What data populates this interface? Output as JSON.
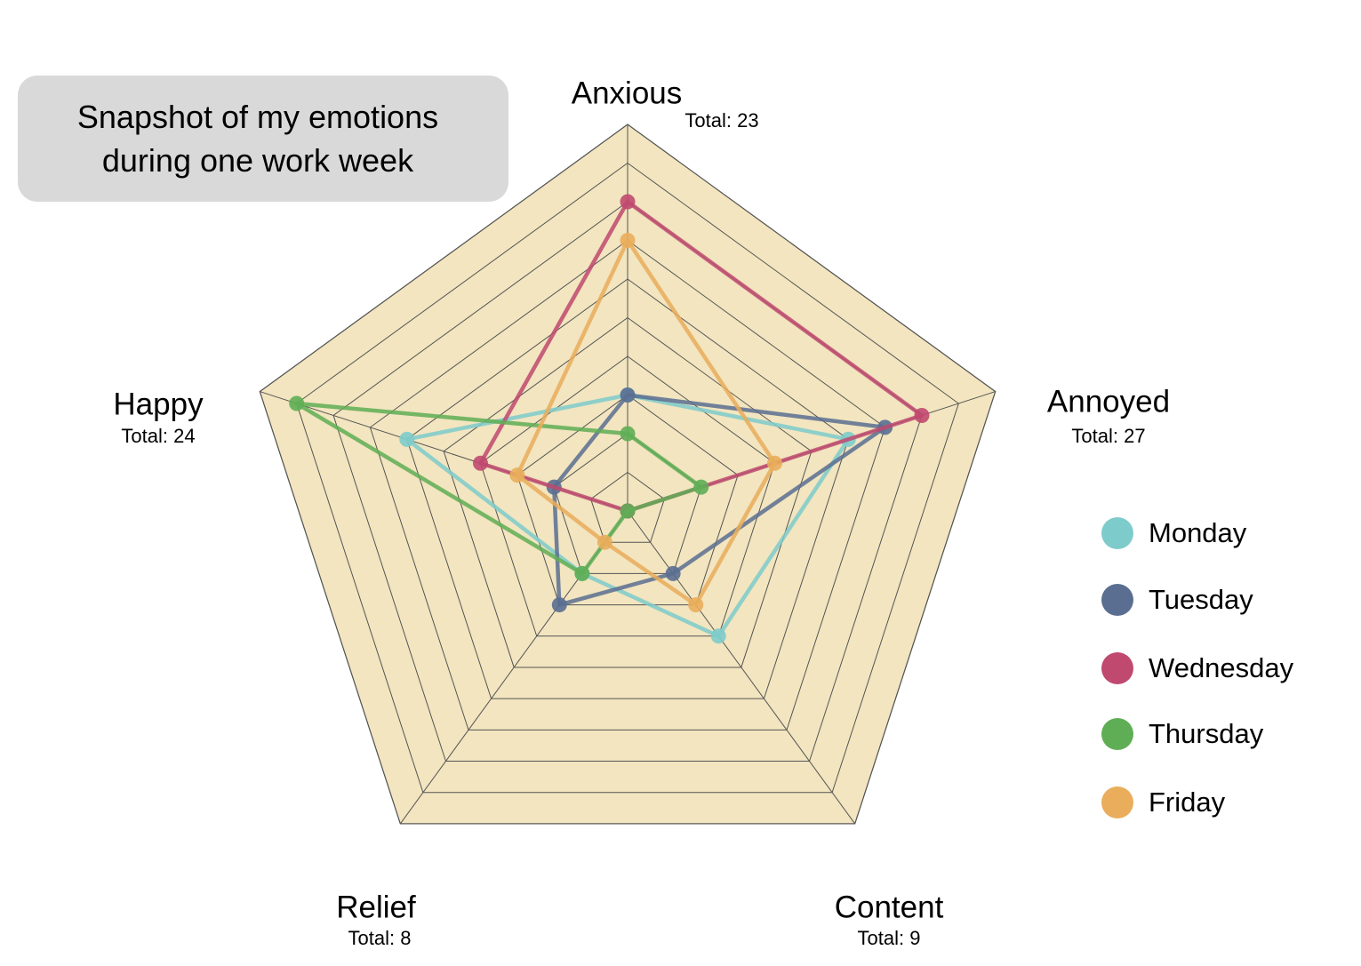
{
  "chart_data": {
    "type": "radar",
    "title": "Snapshot of my emotions during one work week",
    "categories": [
      "Anxious",
      "Annoyed",
      "Content",
      "Relief",
      "Happy"
    ],
    "category_totals": [
      "Total: 23",
      "Total: 27",
      "Total: 9",
      "Total: 8",
      "Total: 24"
    ],
    "rlim": [
      0,
      10
    ],
    "rticks": [
      1,
      2,
      3,
      4,
      5,
      6,
      7,
      8,
      9,
      10
    ],
    "grid": true,
    "legend": "right",
    "background": "#f2e5bf",
    "series": [
      {
        "name": "Monday",
        "color": "#7ecbcb",
        "values": [
          3,
          6,
          4,
          2,
          6
        ]
      },
      {
        "name": "Tuesday",
        "color": "#5a6e91",
        "values": [
          3,
          7,
          2,
          3,
          2
        ]
      },
      {
        "name": "Wednesday",
        "color": "#c0496f",
        "values": [
          8,
          8,
          0,
          0,
          4
        ]
      },
      {
        "name": "Thursday",
        "color": "#5fae55",
        "values": [
          2,
          2,
          0,
          2,
          9
        ]
      },
      {
        "name": "Friday",
        "color": "#e9ad5b",
        "values": [
          7,
          4,
          3,
          1,
          3
        ]
      }
    ]
  }
}
